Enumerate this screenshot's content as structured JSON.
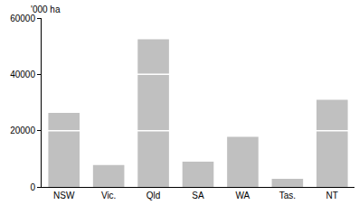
{
  "chart_data": {
    "type": "bar",
    "y_label": "'000 ha",
    "categories": [
      "NSW",
      "Vic.",
      "Qld",
      "SA",
      "WA",
      "Tas.",
      "NT"
    ],
    "values": [
      26300,
      7800,
      52500,
      9000,
      17800,
      2900,
      31000
    ],
    "color": "#c0c0c0",
    "ylim": [
      0,
      60000
    ],
    "yticks": [
      0,
      20000,
      40000,
      60000
    ],
    "grid": true
  }
}
